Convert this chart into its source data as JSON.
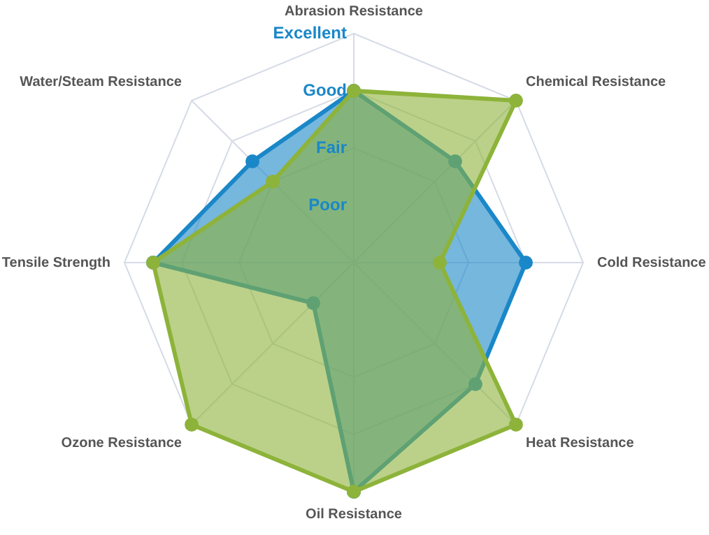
{
  "chart_data": {
    "type": "radar",
    "categories": [
      "Abrasion Resistance",
      "Chemical Resistance",
      "Cold Resistance",
      "Heat Resistance",
      "Oil Resistance",
      "Ozone Resistance",
      "Tensile Strength",
      "Water/Steam Resistance"
    ],
    "series": [
      {
        "color": "#8db33a",
        "values": [
          3,
          4,
          1.5,
          4,
          4,
          4,
          3.5,
          2
        ]
      },
      {
        "color": "#1a87c8",
        "values": [
          3,
          2.5,
          3,
          3,
          4,
          1,
          3.5,
          2.5
        ]
      }
    ],
    "ylim": [
      0,
      4
    ],
    "yticks": [
      {
        "value": 1,
        "label": "Poor"
      },
      {
        "value": 2,
        "label": "Fair"
      },
      {
        "value": 3,
        "label": "Good"
      },
      {
        "value": 4,
        "label": "Excellent"
      }
    ],
    "grid": true,
    "marker": "circle",
    "legend": false
  }
}
